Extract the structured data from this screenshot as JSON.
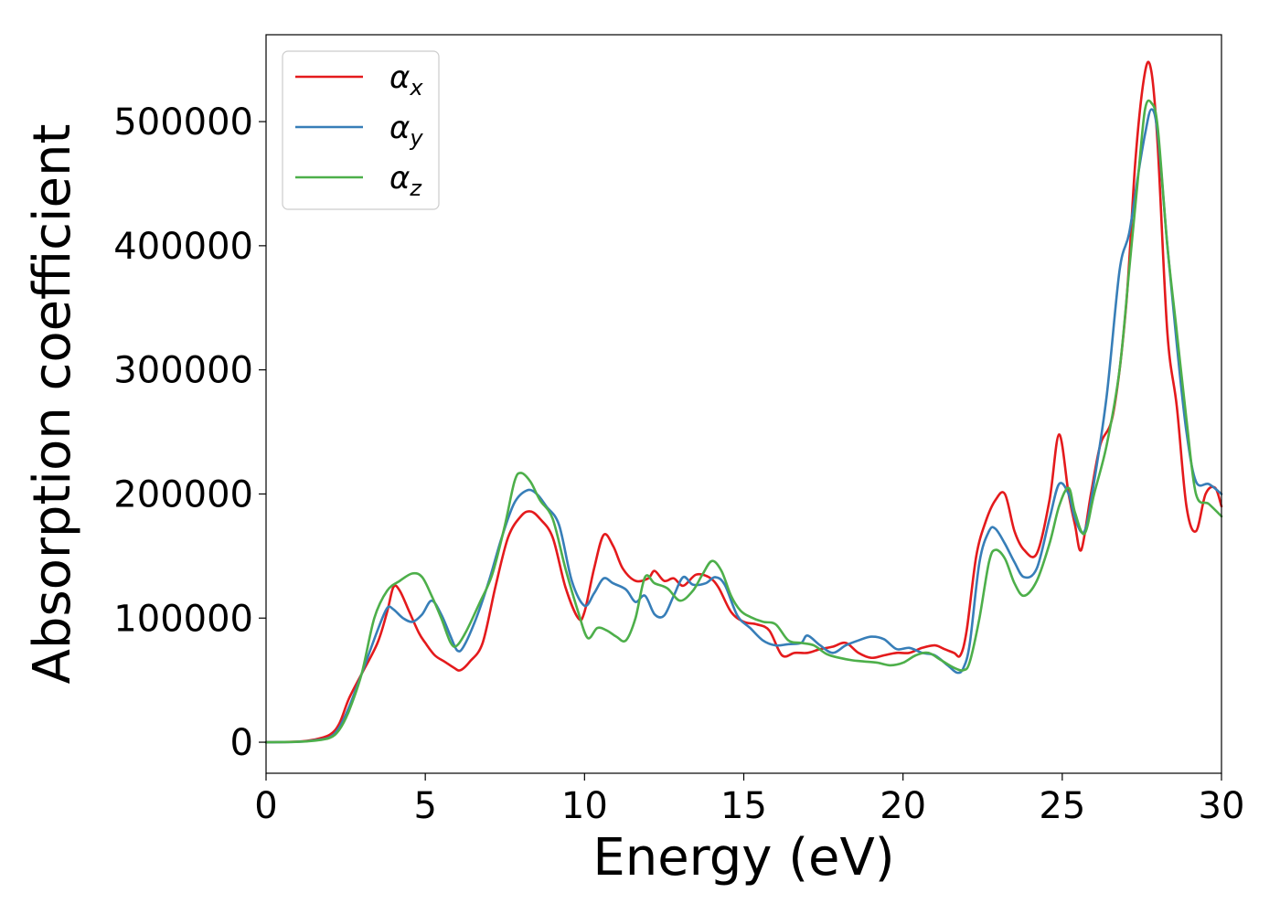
{
  "chart_data": {
    "type": "line",
    "title": "",
    "xlabel": "Energy (eV)",
    "ylabel": "Absorption coefficient",
    "xlim": [
      0,
      30
    ],
    "ylim": [
      -25000,
      570000
    ],
    "xticks": [
      0,
      5,
      10,
      15,
      20,
      25,
      30
    ],
    "yticks": [
      0,
      100000,
      200000,
      300000,
      400000,
      500000
    ],
    "grid": false,
    "legend_position": "top-left",
    "series": [
      {
        "name": "αx",
        "symbol": "α",
        "subscript": "x",
        "color": "#e41a1c",
        "x": [
          0,
          1,
          1.5,
          2,
          2.3,
          2.6,
          3,
          3.5,
          3.8,
          4.0,
          4.2,
          4.5,
          4.8,
          5.0,
          5.3,
          5.6,
          5.9,
          6.1,
          6.4,
          6.8,
          7.2,
          7.6,
          8.0,
          8.3,
          8.6,
          9.0,
          9.4,
          9.8,
          10.0,
          10.3,
          10.6,
          10.9,
          11.2,
          11.6,
          12.0,
          12.2,
          12.5,
          12.8,
          13.1,
          13.5,
          13.9,
          14.2,
          14.6,
          15.0,
          15.4,
          15.8,
          16.2,
          16.6,
          17.0,
          17.4,
          17.8,
          18.2,
          18.6,
          19.0,
          19.4,
          19.8,
          20.2,
          20.6,
          21.0,
          21.3,
          21.6,
          21.8,
          22.0,
          22.3,
          22.6,
          22.9,
          23.2,
          23.5,
          23.8,
          24.2,
          24.6,
          24.9,
          25.2,
          25.4,
          25.6,
          25.9,
          26.2,
          26.6,
          27.0,
          27.3,
          27.6,
          27.8,
          28.0,
          28.3,
          28.6,
          28.9,
          29.2,
          29.5,
          29.8,
          30.0
        ],
        "y": [
          0,
          500,
          2000,
          6000,
          15000,
          35000,
          55000,
          80000,
          105000,
          125000,
          122000,
          105000,
          88000,
          80000,
          70000,
          65000,
          60000,
          58000,
          65000,
          80000,
          125000,
          165000,
          182000,
          186000,
          180000,
          165000,
          125000,
          100000,
          105000,
          140000,
          167000,
          158000,
          140000,
          130000,
          132000,
          138000,
          130000,
          132000,
          126000,
          135000,
          133000,
          125000,
          105000,
          97000,
          95000,
          90000,
          70000,
          72000,
          72000,
          75000,
          77000,
          80000,
          72000,
          68000,
          70000,
          72000,
          72000,
          76000,
          78000,
          75000,
          72000,
          70000,
          90000,
          150000,
          178000,
          195000,
          200000,
          170000,
          155000,
          152000,
          195000,
          248000,
          200000,
          175000,
          155000,
          200000,
          240000,
          265000,
          350000,
          470000,
          540000,
          540000,
          480000,
          330000,
          270000,
          190000,
          170000,
          200000,
          205000,
          190000
        ]
      },
      {
        "name": "αy",
        "symbol": "α",
        "subscript": "y",
        "color": "#377eb8",
        "x": [
          0,
          1,
          1.5,
          2,
          2.3,
          2.6,
          3,
          3.5,
          3.8,
          4.0,
          4.3,
          4.6,
          4.9,
          5.2,
          5.5,
          5.8,
          6.0,
          6.2,
          6.6,
          7.0,
          7.4,
          7.8,
          8.2,
          8.5,
          8.8,
          9.2,
          9.6,
          10.0,
          10.3,
          10.6,
          10.9,
          11.3,
          11.6,
          11.9,
          12.2,
          12.5,
          12.8,
          13.1,
          13.4,
          13.8,
          14.1,
          14.4,
          14.8,
          15.2,
          15.6,
          16.0,
          16.4,
          16.8,
          17.0,
          17.4,
          17.8,
          18.2,
          18.6,
          19.0,
          19.4,
          19.8,
          20.2,
          20.6,
          21.0,
          21.4,
          21.7,
          21.9,
          22.1,
          22.4,
          22.7,
          22.9,
          23.2,
          23.5,
          23.8,
          24.2,
          24.6,
          24.9,
          25.2,
          25.4,
          25.7,
          26.0,
          26.4,
          26.8,
          27.1,
          27.4,
          27.6,
          27.8,
          28.0,
          28.3,
          28.6,
          28.9,
          29.2,
          29.6,
          30.0
        ],
        "y": [
          0,
          300,
          1500,
          4000,
          12000,
          28000,
          55000,
          90000,
          108000,
          107000,
          100000,
          97000,
          103000,
          114000,
          103000,
          85000,
          74000,
          77000,
          100000,
          130000,
          165000,
          193000,
          203000,
          200000,
          190000,
          175000,
          130000,
          110000,
          120000,
          132000,
          128000,
          123000,
          113000,
          118000,
          103000,
          102000,
          118000,
          133000,
          127000,
          128000,
          133000,
          127000,
          102000,
          92000,
          82000,
          78000,
          79000,
          80000,
          86000,
          78000,
          72000,
          78000,
          82000,
          85000,
          83000,
          75000,
          76000,
          72000,
          70000,
          62000,
          56000,
          60000,
          80000,
          145000,
          170000,
          172000,
          160000,
          145000,
          133000,
          140000,
          180000,
          208000,
          200000,
          180000,
          170000,
          210000,
          280000,
          380000,
          410000,
          460000,
          490000,
          510000,
          490000,
          400000,
          320000,
          250000,
          210000,
          208000,
          200000
        ]
      },
      {
        "name": "αz",
        "symbol": "α",
        "subscript": "z",
        "color": "#4daf4a",
        "x": [
          0,
          1,
          1.5,
          2,
          2.3,
          2.6,
          3,
          3.4,
          3.8,
          4.2,
          4.6,
          4.9,
          5.2,
          5.5,
          5.8,
          6.0,
          6.3,
          6.7,
          7.1,
          7.5,
          7.8,
          8.0,
          8.3,
          8.6,
          9.0,
          9.4,
          9.8,
          10.1,
          10.4,
          10.7,
          11.0,
          11.3,
          11.6,
          11.9,
          12.2,
          12.6,
          13.0,
          13.4,
          13.7,
          14.0,
          14.3,
          14.6,
          14.9,
          15.2,
          15.6,
          16.0,
          16.4,
          16.8,
          17.2,
          17.6,
          18.0,
          18.4,
          18.8,
          19.2,
          19.6,
          20.0,
          20.4,
          20.8,
          21.2,
          21.6,
          21.9,
          22.1,
          22.4,
          22.7,
          22.9,
          23.2,
          23.5,
          23.8,
          24.2,
          24.6,
          24.9,
          25.2,
          25.4,
          25.7,
          26.0,
          26.4,
          26.8,
          27.1,
          27.4,
          27.6,
          27.8,
          28.0,
          28.3,
          28.6,
          28.9,
          29.2,
          29.6,
          30.0
        ],
        "y": [
          0,
          300,
          1200,
          3500,
          10000,
          25000,
          55000,
          100000,
          122000,
          130000,
          136000,
          133000,
          118000,
          100000,
          80000,
          78000,
          90000,
          112000,
          135000,
          175000,
          210000,
          217000,
          210000,
          195000,
          180000,
          140000,
          105000,
          84000,
          92000,
          90000,
          85000,
          82000,
          100000,
          133000,
          128000,
          124000,
          114000,
          122000,
          135000,
          146000,
          138000,
          118000,
          106000,
          101000,
          97000,
          95000,
          82000,
          80000,
          78000,
          71000,
          68000,
          66000,
          65000,
          64000,
          62000,
          64000,
          70000,
          72000,
          66000,
          60000,
          58000,
          65000,
          100000,
          145000,
          155000,
          148000,
          128000,
          118000,
          130000,
          160000,
          190000,
          205000,
          185000,
          168000,
          200000,
          240000,
          300000,
          380000,
          460000,
          510000,
          515000,
          495000,
          400000,
          330000,
          260000,
          200000,
          192000,
          182000
        ]
      }
    ]
  }
}
